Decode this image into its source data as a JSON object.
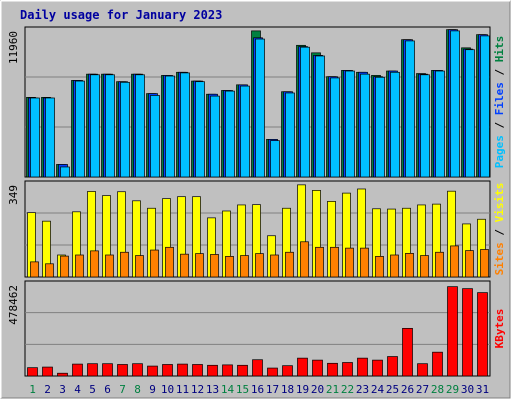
{
  "chart_data": {
    "type": "bar",
    "title": "Daily usage for January 2023",
    "categories": [
      "1",
      "2",
      "3",
      "4",
      "5",
      "6",
      "7",
      "8",
      "9",
      "10",
      "11",
      "12",
      "13",
      "14",
      "15",
      "16",
      "17",
      "18",
      "19",
      "20",
      "21",
      "22",
      "23",
      "24",
      "25",
      "26",
      "27",
      "28",
      "29",
      "30",
      "31"
    ],
    "weekend_days": [
      "1",
      "7",
      "8",
      "14",
      "15",
      "21",
      "22",
      "28",
      "29"
    ],
    "panels": [
      {
        "ymax_label": "11960",
        "ymax": 11960,
        "axis_label_parts": [
          "Pages",
          "Files",
          "Hits"
        ],
        "series": [
          {
            "name": "Hits",
            "color": "#008040",
            "values": [
              6350,
              6350,
              1000,
              7700,
              8200,
              8200,
              7600,
              8200,
              6650,
              8100,
              8350,
              7650,
              6600,
              6900,
              7350,
              11650,
              3000,
              6800,
              10500,
              9900,
              8000,
              8500,
              8350,
              8100,
              8450,
              10950,
              8250,
              8500,
              11750,
              10300,
              11350
            ]
          },
          {
            "name": "Files",
            "color": "#0040ff",
            "values": [
              6300,
              6300,
              1000,
              7700,
              8200,
              8200,
              7600,
              8200,
              6650,
              8100,
              8350,
              7650,
              6600,
              6900,
              7350,
              11100,
              3000,
              6800,
              10400,
              9700,
              8000,
              8500,
              8350,
              8000,
              8450,
              10950,
              8200,
              8500,
              11750,
              10200,
              11350
            ]
          },
          {
            "name": "Pages",
            "color": "#00c0ff",
            "values": [
              6300,
              6300,
              800,
              7650,
              8150,
              8150,
              7550,
              8150,
              6500,
              8050,
              8300,
              7600,
              6450,
              6850,
              7250,
              11000,
              2900,
              6700,
              10350,
              9650,
              7900,
              8450,
              8200,
              7950,
              8350,
              10850,
              8150,
              8450,
              11650,
              10150,
              11250
            ]
          }
        ]
      },
      {
        "ymax_label": "349",
        "ymax": 349,
        "axis_label_parts": [
          "Sites",
          "Visits"
        ],
        "series": [
          {
            "name": "Visits",
            "color": "#ffff00",
            "values": [
              234,
              203,
              80,
              237,
              311,
              296,
              310,
              277,
              250,
              285,
              292,
              292,
              215,
              240,
              262,
              263,
              150,
              250,
              335,
              315,
              275,
              305,
              320,
              248,
              247,
              250,
              262,
              265,
              312,
              193,
              210
            ]
          },
          {
            "name": "Sites",
            "color": "#ff8000",
            "values": [
              55,
              48,
              76,
              80,
              95,
              80,
              90,
              78,
              98,
              108,
              83,
              85,
              82,
              75,
              78,
              85,
              80,
              90,
              128,
              108,
              108,
              105,
              105,
              75,
              80,
              86,
              78,
              90,
              113,
              96,
              100
            ]
          }
        ]
      },
      {
        "ymax_label": "478462",
        "ymax": 478462,
        "axis_label_parts": [
          "KBytes"
        ],
        "series": [
          {
            "name": "KBytes",
            "color": "#ff0000",
            "values": [
              42000,
              45000,
              14000,
              60000,
              62000,
              62000,
              58000,
              62000,
              50000,
              58000,
              60000,
              58000,
              54000,
              56000,
              54000,
              82000,
              40000,
              52000,
              90000,
              80000,
              64000,
              68000,
              90000,
              80000,
              98000,
              240000,
              62000,
              120000,
              450000,
              440000,
              420000
            ]
          }
        ]
      }
    ]
  }
}
